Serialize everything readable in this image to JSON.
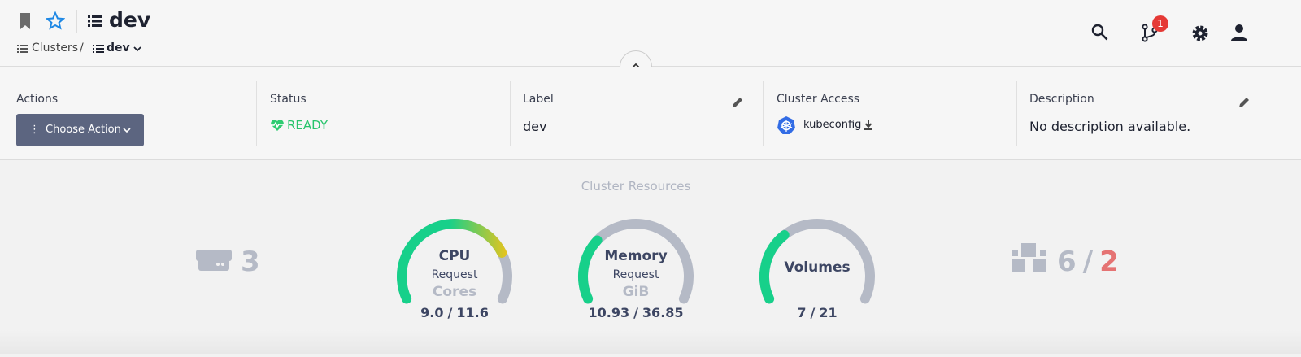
{
  "header": {
    "title": "dev",
    "breadcrumb": [
      "Clusters",
      "/",
      "dev"
    ],
    "notification_count": "1"
  },
  "info": {
    "actions": {
      "label": "Actions",
      "button": "Choose Action"
    },
    "status": {
      "label": "Status",
      "value": "READY"
    },
    "cluster_label": {
      "label": "Label",
      "value": "dev"
    },
    "access": {
      "label": "Cluster Access",
      "value": "kubeconfig"
    },
    "description": {
      "label": "Description",
      "value": "No description available."
    }
  },
  "resources": {
    "title": "Cluster Resources",
    "nodes": 3,
    "pods": {
      "running": 6,
      "separator": "/",
      "failed": 2
    },
    "gauges": [
      {
        "title": "CPU",
        "subtitle": "Request",
        "unit": "Cores",
        "used": {
          "value": 9,
          "label": "9.0"
        },
        "separator": "/",
        "total": {
          "value": 11.6,
          "label": "11.6"
        }
      },
      {
        "title": "Memory",
        "subtitle": "Request",
        "unit": "GiB",
        "used": {
          "value": 10.93,
          "label": "10.93"
        },
        "separator": "/",
        "total": {
          "value": 36.85,
          "label": "36.85"
        }
      },
      {
        "title": "Volumes",
        "used": 7,
        "separator": "/",
        "total": 21
      }
    ]
  }
}
